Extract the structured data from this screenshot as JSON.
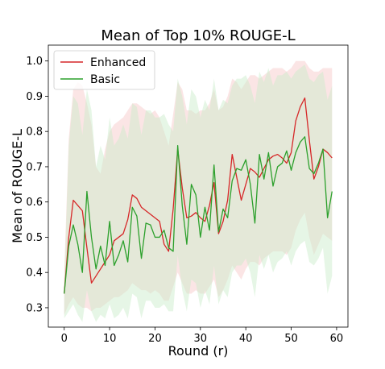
{
  "chart_data": {
    "type": "line",
    "title": "Mean of Top 10% ROUGE-L",
    "xlabel": "Round (r)",
    "ylabel": "Mean of ROUGE-L",
    "xlim": [
      -3.5,
      62.5
    ],
    "ylim": [
      0.245,
      1.045
    ],
    "xticks": [
      0,
      10,
      20,
      30,
      40,
      50,
      60
    ],
    "yticks": [
      0.3,
      0.4,
      0.5,
      0.6,
      0.7,
      0.8,
      0.9,
      1.0
    ],
    "xtick_labels": [
      "0",
      "10",
      "20",
      "30",
      "40",
      "50",
      "60"
    ],
    "ytick_labels": [
      "0.3",
      "0.4",
      "0.5",
      "0.6",
      "0.7",
      "0.8",
      "0.9",
      "1.0"
    ],
    "grid": false,
    "legend_position": "top-left",
    "x": [
      0,
      1,
      2,
      3,
      4,
      5,
      6,
      7,
      8,
      9,
      10,
      11,
      12,
      13,
      14,
      15,
      16,
      17,
      18,
      19,
      20,
      21,
      22,
      23,
      24,
      25,
      26,
      27,
      28,
      29,
      30,
      31,
      32,
      33,
      34,
      35,
      36,
      37,
      38,
      39,
      40,
      41,
      42,
      43,
      44,
      45,
      46,
      47,
      48,
      49,
      50,
      51,
      52,
      53,
      54,
      55,
      56,
      57,
      58,
      59
    ],
    "series": [
      {
        "name": "Enhanced",
        "color": "#d62728",
        "band_color": "#f7c6c6",
        "values": [
          0.34,
          0.5,
          0.605,
          0.59,
          0.575,
          0.47,
          0.37,
          0.39,
          0.41,
          0.43,
          0.45,
          0.49,
          0.5,
          0.51,
          0.55,
          0.62,
          0.61,
          0.585,
          0.575,
          0.565,
          0.555,
          0.545,
          0.48,
          0.46,
          0.58,
          0.75,
          0.64,
          0.555,
          0.56,
          0.57,
          0.555,
          0.545,
          0.59,
          0.655,
          0.51,
          0.545,
          0.605,
          0.735,
          0.67,
          0.605,
          0.65,
          0.695,
          0.685,
          0.67,
          0.695,
          0.72,
          0.73,
          0.735,
          0.725,
          0.71,
          0.74,
          0.83,
          0.87,
          0.895,
          0.775,
          0.665,
          0.7,
          0.75,
          0.74,
          0.725
        ],
        "band_upper": [
          0.4,
          0.78,
          0.92,
          0.94,
          0.93,
          0.88,
          0.82,
          0.7,
          0.68,
          0.75,
          0.8,
          0.82,
          0.83,
          0.84,
          0.86,
          0.88,
          0.88,
          0.87,
          0.86,
          0.85,
          0.86,
          0.84,
          0.8,
          0.76,
          0.85,
          0.94,
          0.92,
          0.86,
          0.86,
          0.85,
          0.86,
          0.86,
          0.88,
          0.92,
          0.86,
          0.87,
          0.9,
          0.95,
          0.94,
          0.92,
          0.94,
          0.96,
          0.96,
          0.95,
          0.96,
          0.97,
          0.98,
          0.98,
          0.98,
          0.97,
          0.98,
          1.0,
          1.0,
          1.0,
          0.98,
          0.97,
          0.97,
          0.98,
          0.98,
          0.98
        ],
        "band_lower": [
          0.28,
          0.31,
          0.33,
          0.31,
          0.3,
          0.3,
          0.29,
          0.3,
          0.3,
          0.31,
          0.32,
          0.33,
          0.33,
          0.34,
          0.35,
          0.37,
          0.36,
          0.35,
          0.35,
          0.34,
          0.35,
          0.34,
          0.32,
          0.32,
          0.36,
          0.4,
          0.37,
          0.34,
          0.34,
          0.35,
          0.34,
          0.34,
          0.36,
          0.38,
          0.33,
          0.35,
          0.38,
          0.42,
          0.4,
          0.38,
          0.41,
          0.43,
          0.43,
          0.42,
          0.44,
          0.45,
          0.46,
          0.46,
          0.46,
          0.45,
          0.47,
          0.52,
          0.55,
          0.57,
          0.5,
          0.45,
          0.48,
          0.51,
          0.5,
          0.49
        ]
      },
      {
        "name": "Basic",
        "color": "#2ca02c",
        "band_color": "#c8ecc8",
        "values": [
          0.34,
          0.475,
          0.535,
          0.48,
          0.4,
          0.63,
          0.5,
          0.41,
          0.475,
          0.42,
          0.545,
          0.42,
          0.45,
          0.49,
          0.43,
          0.585,
          0.56,
          0.44,
          0.54,
          0.535,
          0.5,
          0.5,
          0.52,
          0.47,
          0.46,
          0.76,
          0.59,
          0.48,
          0.65,
          0.62,
          0.5,
          0.585,
          0.52,
          0.705,
          0.515,
          0.58,
          0.555,
          0.66,
          0.695,
          0.69,
          0.72,
          0.65,
          0.54,
          0.735,
          0.665,
          0.74,
          0.645,
          0.7,
          0.71,
          0.745,
          0.69,
          0.74,
          0.77,
          0.785,
          0.695,
          0.68,
          0.71,
          0.75,
          0.555,
          0.63
        ],
        "band_upper": [
          0.37,
          0.76,
          0.9,
          0.88,
          0.79,
          0.92,
          0.86,
          0.7,
          0.76,
          0.72,
          0.84,
          0.76,
          0.78,
          0.82,
          0.78,
          0.88,
          0.87,
          0.79,
          0.86,
          0.86,
          0.84,
          0.84,
          0.85,
          0.82,
          0.8,
          0.95,
          0.9,
          0.82,
          0.92,
          0.9,
          0.84,
          0.89,
          0.86,
          0.95,
          0.86,
          0.89,
          0.88,
          0.93,
          0.95,
          0.95,
          0.96,
          0.93,
          0.88,
          0.97,
          0.94,
          0.98,
          0.93,
          0.96,
          0.96,
          0.97,
          0.95,
          0.97,
          0.98,
          0.99,
          0.95,
          0.94,
          0.96,
          0.97,
          0.89,
          0.93
        ],
        "band_lower": [
          0.27,
          0.29,
          0.31,
          0.28,
          0.26,
          0.35,
          0.29,
          0.26,
          0.28,
          0.27,
          0.31,
          0.27,
          0.28,
          0.3,
          0.27,
          0.34,
          0.33,
          0.27,
          0.32,
          0.32,
          0.3,
          0.3,
          0.31,
          0.29,
          0.29,
          0.45,
          0.35,
          0.29,
          0.38,
          0.37,
          0.3,
          0.35,
          0.31,
          0.42,
          0.31,
          0.35,
          0.33,
          0.4,
          0.42,
          0.42,
          0.44,
          0.4,
          0.33,
          0.45,
          0.41,
          0.45,
          0.4,
          0.43,
          0.44,
          0.46,
          0.42,
          0.46,
          0.48,
          0.49,
          0.43,
          0.42,
          0.44,
          0.47,
          0.34,
          0.39
        ]
      }
    ]
  }
}
